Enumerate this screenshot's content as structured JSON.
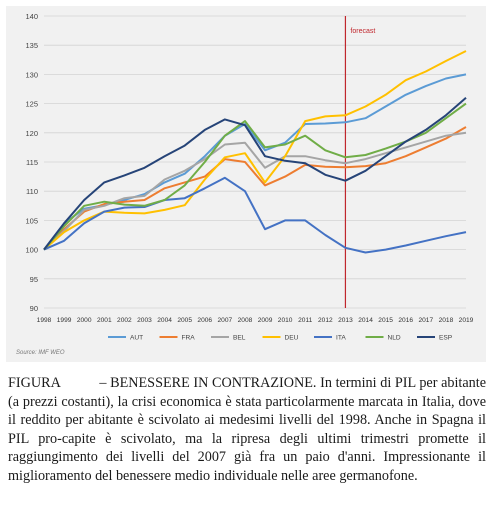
{
  "chart_data": {
    "type": "line",
    "title": "",
    "xlabel": "",
    "ylabel": "",
    "ylim": [
      90,
      140
    ],
    "yticks": [
      90,
      95,
      100,
      105,
      110,
      115,
      120,
      125,
      130,
      135,
      140
    ],
    "x": [
      "1998",
      "1999",
      "2000",
      "2001",
      "2002",
      "2003",
      "2004",
      "2005",
      "2006",
      "2007",
      "2008",
      "2009",
      "2010",
      "2011",
      "2012",
      "2013",
      "2014",
      "2015",
      "2016",
      "2017",
      "2018",
      "2019"
    ],
    "grid": true,
    "legend": "bottom",
    "annotation": {
      "label": "forecast",
      "x": "2013",
      "color": "#c0272d"
    },
    "source": "Source: IMF WEO",
    "series": [
      {
        "name": "AUT",
        "color": "#5b9bd5",
        "values": [
          100,
          104.5,
          107,
          107.6,
          108.5,
          109.5,
          111.5,
          113,
          116,
          119.5,
          121.5,
          117,
          118.3,
          121.5,
          121.6,
          121.8,
          122.5,
          124.5,
          126.5,
          128,
          129.3,
          130
        ]
      },
      {
        "name": "FRA",
        "color": "#ed7d31",
        "values": [
          100,
          103.5,
          106.5,
          107.8,
          108.2,
          108.5,
          110.5,
          111.5,
          112.5,
          115.5,
          115,
          111,
          112.5,
          114.5,
          114.2,
          114.1,
          114.3,
          114.8,
          116,
          117.5,
          119,
          121
        ]
      },
      {
        "name": "BEL",
        "color": "#a5a5a5",
        "values": [
          100,
          103.2,
          106.8,
          107.5,
          108.8,
          109.2,
          112,
          113.5,
          115.5,
          118,
          118.3,
          114,
          116,
          116,
          115.3,
          114.8,
          115.5,
          116.5,
          117.5,
          118.5,
          119.5,
          120
        ]
      },
      {
        "name": "DEU",
        "color": "#ffc000",
        "values": [
          100,
          103,
          105,
          106.5,
          106.3,
          106.2,
          106.8,
          107.6,
          112,
          115.8,
          116.5,
          111.5,
          116,
          122,
          122.8,
          123,
          124.5,
          126.5,
          129,
          130.5,
          132.3,
          134
        ]
      },
      {
        "name": "ITA",
        "color": "#4472c4",
        "values": [
          100,
          101.5,
          104.5,
          106.5,
          107.2,
          107.3,
          108.5,
          108.8,
          110.5,
          112.3,
          110,
          103.5,
          105,
          105,
          102.5,
          100.3,
          99.5,
          100,
          100.7,
          101.5,
          102.3,
          103
        ]
      },
      {
        "name": "NLD",
        "color": "#70ad47",
        "values": [
          100,
          104,
          107.5,
          108.2,
          107.7,
          107.5,
          108.5,
          111,
          115,
          119.5,
          122,
          117.5,
          118,
          119.5,
          117,
          115.8,
          116.2,
          117.3,
          118.5,
          120,
          122.5,
          125
        ]
      },
      {
        "name": "ESP",
        "color": "#264478",
        "values": [
          100,
          104.5,
          108.5,
          111.5,
          112.7,
          114,
          116,
          117.8,
          120.5,
          122.3,
          121.3,
          116,
          115.2,
          114.8,
          112.8,
          111.8,
          113.5,
          116,
          118.5,
          120.5,
          123,
          126
        ]
      }
    ]
  },
  "caption": {
    "label": "FIGURA",
    "dash": "–",
    "heading": "BENESSERE IN CONTRAZIONE.",
    "text": "In termini di PIL per abitante (a prezzi costanti), la crisi economica è stata particolarmente marcata in Italia, dove il reddito per abitante è scivolato ai medesimi livelli del 1998. Anche in Spagna il PIL pro-capite è scivolato, ma la ripresa degli ultimi trimestri promette il raggiungimento dei livelli del 2007 già fra un paio d'anni. Impressionante il miglioramento del benessere medio individuale nelle aree germanofone."
  }
}
